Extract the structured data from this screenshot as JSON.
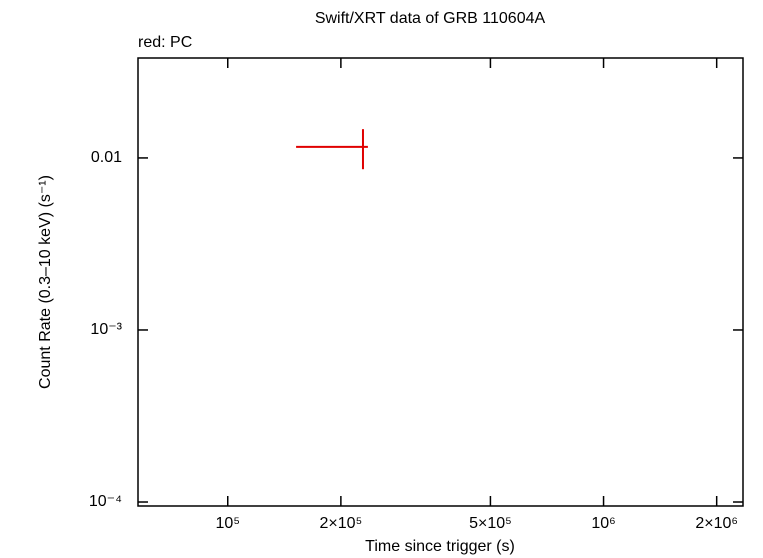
{
  "chart_data": {
    "type": "scatter",
    "title": "Swift/XRT data of GRB 110604A",
    "annotation": "red: PC",
    "x_label": "Time since trigger (s)",
    "y_label": "Count Rate (0.3–10 keV) (s⁻¹)",
    "x_log": true,
    "y_log": true,
    "xlim": [
      57700,
      2350000
    ],
    "ylim": [
      9.48e-05,
      0.0381
    ],
    "xticks": [
      {
        "value": 100000,
        "label": "10⁵"
      },
      {
        "value": 200000,
        "label": "2×10⁵"
      },
      {
        "value": 500000,
        "label": "5×10⁵"
      },
      {
        "value": 1000000,
        "label": "10⁶"
      },
      {
        "value": 2000000,
        "label": "2×10⁶"
      }
    ],
    "yticks": [
      {
        "value": 0.0001,
        "label": "10⁻⁴"
      },
      {
        "value": 0.001,
        "label": "10⁻³"
      },
      0.01
    ],
    "series": [
      {
        "color": "#e00000",
        "x": [
          229000
        ],
        "xerr_minus": [
          77000
        ],
        "xerr_plus": [
          7000
        ],
        "values": [
          0.0116
        ],
        "yerr_minus": [
          0.003
        ],
        "yerr_plus": [
          0.0031
        ]
      }
    ]
  }
}
